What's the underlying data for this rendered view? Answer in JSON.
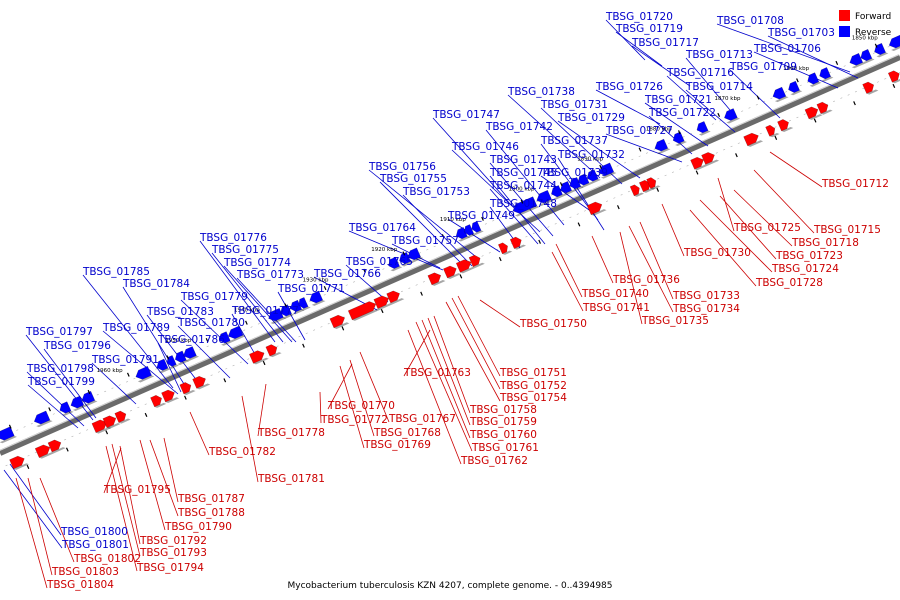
{
  "caption": "Mycobacterium tuberculosis KZN 4207, complete genome. - 0..4394985",
  "legend": [
    {
      "label": "Forward",
      "color": "#ff0000"
    },
    {
      "label": "Reverse",
      "color": "#0000ff"
    }
  ],
  "colors": {
    "forward": "#ff0000",
    "reverse": "#0000ff",
    "forward_label": "#cc0000",
    "reverse_label": "#0000cc",
    "axis": "#6a6a6a"
  },
  "kbp_ticks": [
    "1850 kbp",
    "1860 kbp",
    "1870 kbp",
    "1880 kbp",
    "1890 kbp",
    "1900 kbp",
    "1910 kbp",
    "1920 kbp",
    "1930 kbp",
    "1940 kbp",
    "1950 kbp",
    "1960 kbp"
  ],
  "reverse_labels": [
    "TBSG_01720",
    "TBSG_01708",
    "TBSG_01719",
    "TBSG_01703",
    "TBSG_01717",
    "TBSG_01706",
    "TBSG_01713",
    "TBSG_01716",
    "TBSG_01709",
    "TBSG_01726",
    "TBSG_01714",
    "TBSG_01738",
    "TBSG_01721",
    "TBSG_01731",
    "TBSG_01722",
    "TBSG_01729",
    "TBSG_01747",
    "TBSG_01742",
    "TBSG_01727",
    "TBSG_01737",
    "TBSG_01746",
    "TBSG_01732",
    "TBSG_01743",
    "TBSG_01756",
    "TBSG_01745",
    "TBSG_01739",
    "TBSG_01755",
    "TBSG_01744",
    "TBSG_01753",
    "TBSG_01748",
    "TBSG_01749",
    "TBSG_01764",
    "TBSG_01776",
    "TBSG_01757",
    "TBSG_01775",
    "TBSG_01765",
    "TBSG_01774",
    "TBSG_01766",
    "TBSG_01773",
    "TBSG_01785",
    "TBSG_01771",
    "TBSG_01784",
    "TBSG_01779",
    "TBSG_01783",
    "TBSG_01777",
    "TBSG_01780",
    "TBSG_01789",
    "TBSG_01797",
    "TBSG_01786",
    "TBSG_01796",
    "TBSG_01791",
    "TBSG_01798",
    "TBSG_01799",
    "TBSG_01800",
    "TBSG_01801"
  ],
  "forward_labels": [
    "TBSG_01712",
    "TBSG_01715",
    "TBSG_01725",
    "TBSG_01718",
    "TBSG_01730",
    "TBSG_01723",
    "TBSG_01724",
    "TBSG_01736",
    "TBSG_01728",
    "TBSG_01740",
    "TBSG_01733",
    "TBSG_01741",
    "TBSG_01734",
    "TBSG_01750",
    "TBSG_01735",
    "TBSG_01763",
    "TBSG_01751",
    "TBSG_01752",
    "TBSG_01754",
    "TBSG_01770",
    "TBSG_01772",
    "TBSG_01767",
    "TBSG_01758",
    "TBSG_01778",
    "TBSG_01768",
    "TBSG_01759",
    "TBSG_01769",
    "TBSG_01760",
    "TBSG_01761",
    "TBSG_01782",
    "TBSG_01762",
    "TBSG_01781",
    "TBSG_01795",
    "TBSG_01787",
    "TBSG_01788",
    "TBSG_01790",
    "TBSG_01792",
    "TBSG_01793",
    "TBSG_01794",
    "TBSG_01802",
    "TBSG_01803",
    "TBSG_01804"
  ]
}
